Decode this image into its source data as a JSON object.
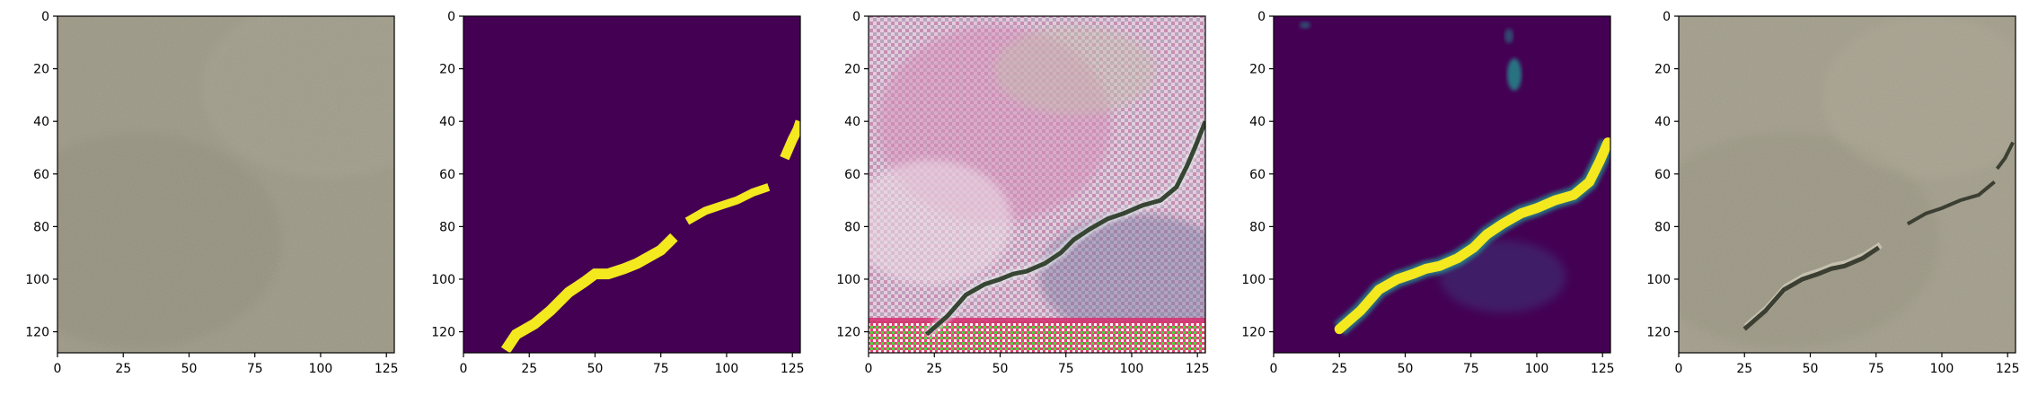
{
  "figure": {
    "panels": [
      {
        "id": "input-image",
        "description_kind": "photo",
        "colors": {
          "base": "#9c9885",
          "dark": "#8c8876",
          "light": "#aaa694"
        },
        "x_ticks": [
          "0",
          "25",
          "50",
          "75",
          "100",
          "125"
        ],
        "y_ticks": [
          "0",
          "20",
          "40",
          "60",
          "80",
          "100",
          "120"
        ]
      },
      {
        "id": "ground-truth-mask",
        "description_kind": "mask",
        "colors": {
          "background": "#440154",
          "mask": "#f4e81f"
        },
        "x_ticks": [
          "0",
          "25",
          "50",
          "75",
          "100",
          "125"
        ],
        "y_ticks": [
          "0",
          "20",
          "40",
          "60",
          "80",
          "100",
          "120"
        ]
      },
      {
        "id": "generated-image",
        "description_kind": "photo",
        "colors": {
          "pink": "#d88bb9",
          "light": "#efdce8",
          "crack": "#2a3a26",
          "magenta": "#d8266c",
          "green": "#3ddc2e"
        },
        "x_ticks": [
          "0",
          "25",
          "50",
          "75",
          "100",
          "125"
        ],
        "y_ticks": [
          "0",
          "20",
          "40",
          "60",
          "80",
          "100",
          "120"
        ]
      },
      {
        "id": "predicted-mask",
        "description_kind": "heatmap",
        "colors": {
          "background": "#440154",
          "high": "#f4e81f",
          "mid": "#21908d"
        },
        "x_ticks": [
          "0",
          "25",
          "50",
          "75",
          "100",
          "125"
        ],
        "y_ticks": [
          "0",
          "20",
          "40",
          "60",
          "80",
          "100",
          "120"
        ]
      },
      {
        "id": "output-image",
        "description_kind": "photo",
        "colors": {
          "base": "#a29d8a",
          "crack": "#2f3325",
          "highlight": "#d8d2c0"
        },
        "x_ticks": [
          "0",
          "25",
          "50",
          "75",
          "100",
          "125"
        ],
        "y_ticks": [
          "0",
          "20",
          "40",
          "60",
          "80",
          "100",
          "120"
        ]
      }
    ]
  }
}
